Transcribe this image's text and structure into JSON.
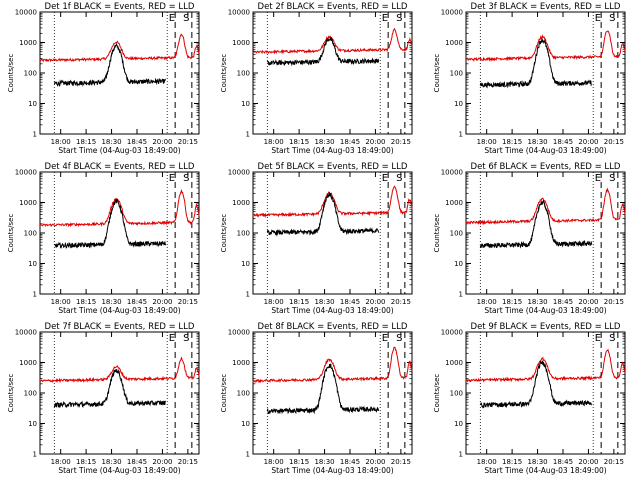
{
  "colors": {
    "events": "#000000",
    "lld": "#e00000",
    "axes": "#000000"
  },
  "ylabel": "Counts/sec",
  "xlabel": "Start Time (04-Aug-03 18:49:00)",
  "x_ticks": [
    "18:00",
    "18:15",
    "18:30",
    "18:45",
    "20:00",
    "20:15"
  ],
  "y_ticks": [
    "1",
    "10",
    "100",
    "1000",
    "10000"
  ],
  "markers": [
    "E",
    "S"
  ],
  "chart_data": [
    {
      "type": "line",
      "title": "Det 1f BLACK = Events, RED = LLD",
      "ylim": [
        1,
        10000
      ],
      "grid": false,
      "series": [
        {
          "name": "Events",
          "base": 45,
          "peak": 750
        },
        {
          "name": "LLD",
          "base": 260,
          "peak": 1000,
          "flare": 1800
        }
      ]
    },
    {
      "type": "line",
      "title": "Det 2f BLACK = Events, RED = LLD",
      "ylim": [
        1,
        10000
      ],
      "grid": false,
      "series": [
        {
          "name": "Events",
          "base": 210,
          "peak": 1300
        },
        {
          "name": "LLD",
          "base": 480,
          "peak": 1500,
          "flare": 2500
        }
      ]
    },
    {
      "type": "line",
      "title": "Det 3f BLACK = Events, RED = LLD",
      "ylim": [
        1,
        10000
      ],
      "grid": false,
      "series": [
        {
          "name": "Events",
          "base": 40,
          "peak": 1200
        },
        {
          "name": "LLD",
          "base": 280,
          "peak": 1500,
          "flare": 2500
        }
      ]
    },
    {
      "type": "line",
      "title": "Det 4f BLACK = Events, RED = LLD",
      "ylim": [
        1,
        10000
      ],
      "grid": false,
      "series": [
        {
          "name": "Events",
          "base": 38,
          "peak": 1100
        },
        {
          "name": "LLD",
          "base": 180,
          "peak": 1300,
          "flare": 2300
        }
      ]
    },
    {
      "type": "line",
      "title": "Det 5f BLACK = Events, RED = LLD",
      "ylim": [
        1,
        10000
      ],
      "grid": false,
      "series": [
        {
          "name": "Events",
          "base": 100,
          "peak": 1800
        },
        {
          "name": "LLD",
          "base": 380,
          "peak": 2000,
          "flare": 3200
        }
      ]
    },
    {
      "type": "line",
      "title": "Det 6f BLACK = Events, RED = LLD",
      "ylim": [
        1,
        10000
      ],
      "grid": false,
      "series": [
        {
          "name": "Events",
          "base": 38,
          "peak": 1000
        },
        {
          "name": "LLD",
          "base": 220,
          "peak": 1300,
          "flare": 2500
        }
      ]
    },
    {
      "type": "line",
      "title": "Det 7f BLACK = Events, RED = LLD",
      "ylim": [
        1,
        10000
      ],
      "grid": false,
      "series": [
        {
          "name": "Events",
          "base": 40,
          "peak": 550
        },
        {
          "name": "LLD",
          "base": 250,
          "peak": 700,
          "flare": 1300
        }
      ]
    },
    {
      "type": "line",
      "title": "Det 8f BLACK = Events, RED = LLD",
      "ylim": [
        1,
        10000
      ],
      "grid": false,
      "series": [
        {
          "name": "Events",
          "base": 25,
          "peak": 800
        },
        {
          "name": "LLD",
          "base": 250,
          "peak": 1200,
          "flare": 3000
        }
      ]
    },
    {
      "type": "line",
      "title": "Det 9f BLACK = Events, RED = LLD",
      "ylim": [
        1,
        10000
      ],
      "grid": false,
      "series": [
        {
          "name": "Events",
          "base": 40,
          "peak": 1000
        },
        {
          "name": "LLD",
          "base": 260,
          "peak": 1300,
          "flare": 2500
        }
      ]
    }
  ]
}
